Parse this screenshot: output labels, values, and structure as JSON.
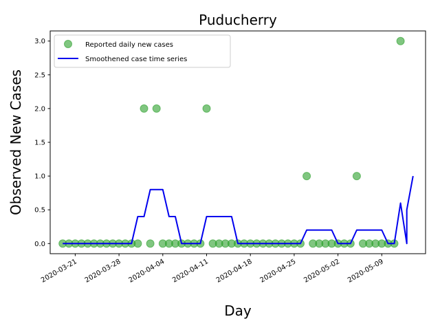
{
  "chart_data": {
    "type": "scatter",
    "title": "Puducherry",
    "xlabel": "Day",
    "ylabel": "Observed New Cases",
    "x_start_date": "2020-03-19",
    "xlim": [
      "2020-03-17",
      "2020-05-16"
    ],
    "ylim": [
      -0.15,
      3.15
    ],
    "x_ticks": [
      "2020-03-21",
      "2020-03-28",
      "2020-04-04",
      "2020-04-11",
      "2020-04-18",
      "2020-04-25",
      "2020-05-02",
      "2020-05-09"
    ],
    "y_ticks": [
      "0.0",
      "0.5",
      "1.0",
      "1.5",
      "2.0",
      "2.5",
      "3.0"
    ],
    "legend_position": "top-left",
    "series": [
      {
        "name": "Reported daily new cases",
        "kind": "points",
        "color": "#2ca02c",
        "dates": [
          "2020-03-19",
          "2020-03-20",
          "2020-03-21",
          "2020-03-22",
          "2020-03-23",
          "2020-03-24",
          "2020-03-25",
          "2020-03-26",
          "2020-03-27",
          "2020-03-28",
          "2020-03-29",
          "2020-03-30",
          "2020-03-31",
          "2020-04-01",
          "2020-04-02",
          "2020-04-03",
          "2020-04-04",
          "2020-04-05",
          "2020-04-06",
          "2020-04-07",
          "2020-04-08",
          "2020-04-09",
          "2020-04-10",
          "2020-04-11",
          "2020-04-12",
          "2020-04-13",
          "2020-04-14",
          "2020-04-15",
          "2020-04-16",
          "2020-04-17",
          "2020-04-18",
          "2020-04-19",
          "2020-04-20",
          "2020-04-21",
          "2020-04-22",
          "2020-04-23",
          "2020-04-24",
          "2020-04-25",
          "2020-04-26",
          "2020-04-27",
          "2020-04-28",
          "2020-04-29",
          "2020-04-30",
          "2020-05-01",
          "2020-05-02",
          "2020-05-03",
          "2020-05-04",
          "2020-05-05",
          "2020-05-06",
          "2020-05-07",
          "2020-05-08",
          "2020-05-09",
          "2020-05-10",
          "2020-05-11",
          "2020-05-12"
        ],
        "values": [
          0,
          0,
          0,
          0,
          0,
          0,
          0,
          0,
          0,
          0,
          0,
          0,
          0,
          2,
          0,
          2,
          0,
          0,
          0,
          0,
          0,
          0,
          0,
          2,
          0,
          0,
          0,
          0,
          0,
          0,
          0,
          0,
          0,
          0,
          0,
          0,
          0,
          0,
          0,
          1,
          0,
          0,
          0,
          0,
          0,
          0,
          0,
          1,
          0,
          0,
          0,
          0,
          0,
          0,
          3
        ]
      },
      {
        "name": "Smoothened case time series",
        "kind": "line",
        "color": "#0000ee",
        "points": [
          [
            "2020-03-19",
            0
          ],
          [
            "2020-03-30",
            0
          ],
          [
            "2020-03-31",
            0.4
          ],
          [
            "2020-04-01",
            0.4
          ],
          [
            "2020-04-02",
            0.8
          ],
          [
            "2020-04-04",
            0.8
          ],
          [
            "2020-04-05",
            0.4
          ],
          [
            "2020-04-06",
            0.4
          ],
          [
            "2020-04-07",
            0
          ],
          [
            "2020-04-10",
            0
          ],
          [
            "2020-04-11",
            0.4
          ],
          [
            "2020-04-15",
            0.4
          ],
          [
            "2020-04-16",
            0
          ],
          [
            "2020-04-26",
            0
          ],
          [
            "2020-04-27",
            0.2
          ],
          [
            "2020-05-01",
            0.2
          ],
          [
            "2020-05-02",
            0
          ],
          [
            "2020-05-04",
            0
          ],
          [
            "2020-05-05",
            0.2
          ],
          [
            "2020-05-09",
            0.2
          ],
          [
            "2020-05-10",
            0
          ],
          [
            "2020-05-11",
            0
          ],
          [
            "2020-05-12",
            0.6
          ],
          [
            "2020-05-13",
            0
          ],
          [
            "2020-05-13",
            0.5
          ],
          [
            "2020-05-14",
            1.0
          ]
        ]
      }
    ]
  }
}
